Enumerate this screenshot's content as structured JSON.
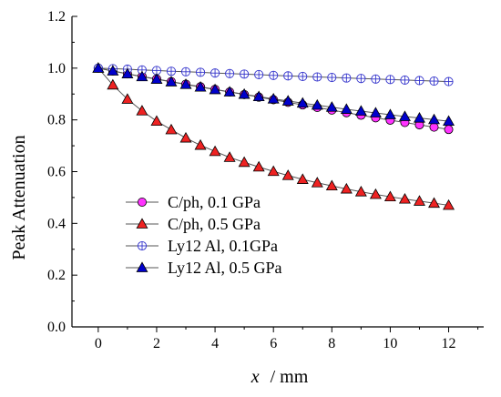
{
  "chart_data": {
    "type": "line",
    "xlabel_var": "x",
    "xlabel_unit": "/ mm",
    "ylabel": "Peak Attenuation",
    "xlim": [
      -0.9,
      13.2
    ],
    "ylim": [
      0.0,
      1.2
    ],
    "xticks": [
      "0",
      "2",
      "4",
      "6",
      "8",
      "10",
      "12"
    ],
    "yticks": [
      "0.0",
      "0.2",
      "0.4",
      "0.6",
      "0.8",
      "1.0",
      "1.2"
    ],
    "legend_position": "bottom-left",
    "x": [
      0,
      0.5,
      1,
      1.5,
      2,
      2.5,
      3,
      3.5,
      4,
      4.5,
      5,
      5.5,
      6,
      6.5,
      7,
      7.5,
      8,
      8.5,
      9,
      9.5,
      10,
      10.5,
      11,
      11.5,
      12
    ],
    "series": [
      {
        "name": "C/ph, 0.1 GPa",
        "marker": "circle",
        "color": "#ff33ff",
        "values": [
          1.0,
          0.989,
          0.978,
          0.968,
          0.958,
          0.948,
          0.938,
          0.928,
          0.918,
          0.908,
          0.898,
          0.888,
          0.878,
          0.868,
          0.858,
          0.848,
          0.838,
          0.828,
          0.818,
          0.808,
          0.799,
          0.79,
          0.781,
          0.772,
          0.763
        ]
      },
      {
        "name": "C/ph, 0.5 GPa",
        "marker": "triangle",
        "color": "#ee2222",
        "values": [
          1.0,
          0.935,
          0.88,
          0.835,
          0.795,
          0.762,
          0.73,
          0.702,
          0.678,
          0.655,
          0.636,
          0.618,
          0.601,
          0.585,
          0.57,
          0.557,
          0.545,
          0.533,
          0.522,
          0.512,
          0.503,
          0.494,
          0.486,
          0.478,
          0.47
        ]
      },
      {
        "name": "Ly12 Al, 0.1GPa",
        "marker": "circle-plus",
        "color": "#ffffff",
        "edge": "#3333cc",
        "values": [
          1.0,
          0.998,
          0.996,
          0.993,
          0.991,
          0.988,
          0.986,
          0.984,
          0.981,
          0.979,
          0.977,
          0.975,
          0.972,
          0.97,
          0.968,
          0.966,
          0.964,
          0.962,
          0.96,
          0.958,
          0.956,
          0.954,
          0.952,
          0.95,
          0.948
        ]
      },
      {
        "name": "Ly12 Al, 0.5 GPa",
        "marker": "triangle",
        "color": "#0000cc",
        "values": [
          1.0,
          0.989,
          0.978,
          0.967,
          0.957,
          0.947,
          0.937,
          0.927,
          0.917,
          0.908,
          0.899,
          0.89,
          0.881,
          0.873,
          0.865,
          0.857,
          0.849,
          0.841,
          0.834,
          0.827,
          0.82,
          0.813,
          0.807,
          0.801,
          0.795
        ]
      }
    ]
  }
}
